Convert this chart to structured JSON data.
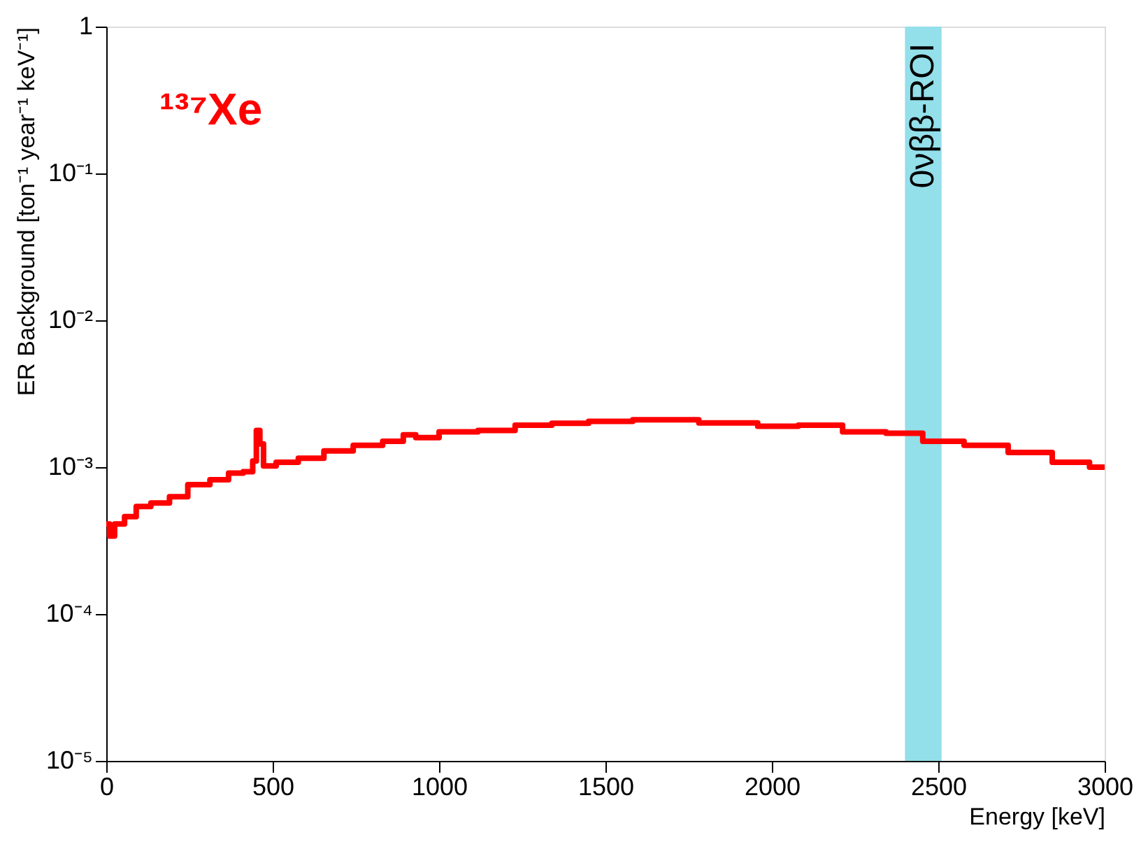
{
  "chart_data": {
    "type": "step",
    "xlabel": "Energy [keV]",
    "ylabel": "ER Background [ton⁻¹ year⁻¹ keV⁻¹]",
    "annotations": [
      "¹³⁷Xe"
    ],
    "x": [
      0,
      20,
      30,
      80,
      100,
      168,
      212,
      278,
      345,
      390,
      433,
      447,
      455,
      468,
      477,
      544,
      610,
      698,
      786,
      875,
      910,
      950,
      1050,
      1184,
      1273,
      1405,
      1494,
      1670,
      1891,
      2024,
      2135,
      2290,
      2396,
      2511,
      2644,
      2776,
      2909,
      3000
    ],
    "series": [
      {
        "color": "#ff0000",
        "values": [
          0.00041,
          0.00034,
          0.00041,
          0.00046,
          0.00054,
          0.00057,
          0.00063,
          0.00076,
          0.00082,
          0.00091,
          0.00093,
          0.0011,
          0.00178,
          0.00144,
          0.00102,
          0.00108,
          0.00115,
          0.00129,
          0.00141,
          0.0015,
          0.00166,
          0.00159,
          0.00174,
          0.00178,
          0.00193,
          0.00199,
          0.00205,
          0.0021,
          0.002,
          0.0019,
          0.00193,
          0.00174,
          0.0017,
          0.0015,
          0.00141,
          0.00126,
          0.00108,
          0.001
        ]
      }
    ],
    "xlim": [
      0,
      3000
    ],
    "xticks": [
      0,
      500,
      1000,
      1500,
      2000,
      2500,
      3000
    ],
    "ylim": [
      1e-05,
      1
    ],
    "log": true,
    "yticks": [
      {
        "value": 1e-05,
        "label": "10⁻⁵"
      },
      {
        "value": 0.0001,
        "label": "10⁻⁴"
      },
      {
        "value": 0.001,
        "label": "10⁻³"
      },
      {
        "value": 0.01,
        "label": "10⁻²"
      },
      {
        "value": 0.1,
        "label": "10⁻¹"
      },
      1
    ],
    "bands": [
      {
        "axis": "x",
        "from": 2400,
        "to": 2510,
        "label": "0νββ-ROI",
        "color": "#93dfea"
      }
    ],
    "grid": false,
    "line_style": "solid",
    "marker": "none"
  }
}
